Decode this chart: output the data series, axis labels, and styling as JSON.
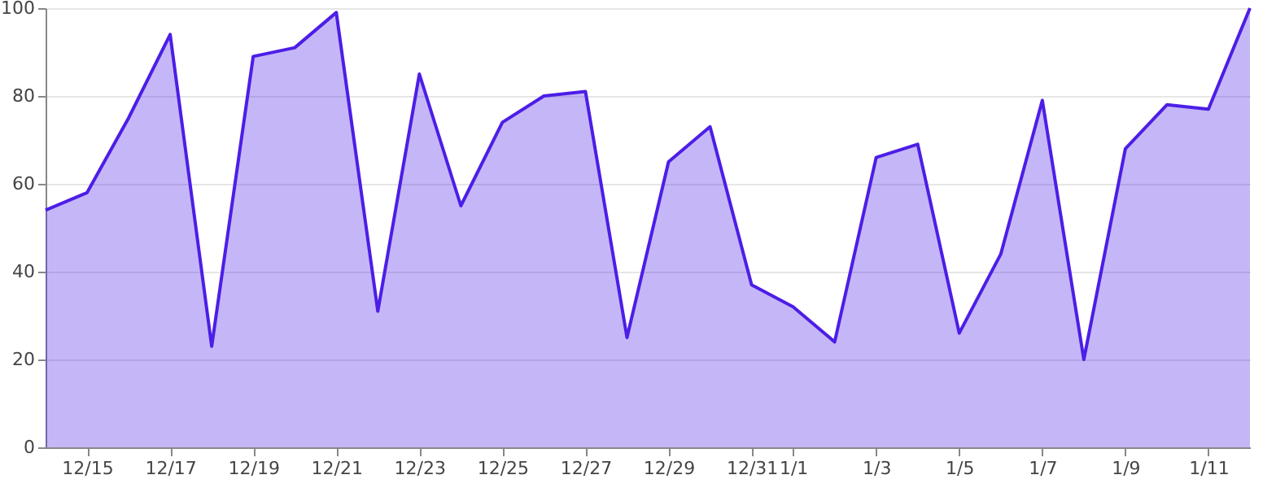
{
  "chart_data": {
    "type": "area",
    "categories": [
      null,
      "12/15",
      null,
      "12/17",
      null,
      "12/19",
      null,
      "12/21",
      null,
      "12/23",
      null,
      "12/25",
      null,
      "12/27",
      null,
      "12/29",
      null,
      "12/31",
      "1/1",
      null,
      "1/3",
      null,
      "1/5",
      null,
      "1/7",
      null,
      "1/9",
      null,
      "1/11",
      null
    ],
    "series": [
      {
        "color": "#4c1ee6",
        "values": [
          54,
          58,
          75,
          94,
          23,
          89,
          91,
          99,
          31,
          85,
          55,
          74,
          80,
          81,
          25,
          65,
          73,
          37,
          32,
          24,
          66,
          69,
          26,
          44,
          79,
          20,
          68,
          78,
          77,
          100
        ]
      }
    ],
    "ylim": [
      0,
      100
    ],
    "yticks": [
      0,
      20,
      40,
      60,
      80,
      100
    ],
    "grid": "y"
  }
}
